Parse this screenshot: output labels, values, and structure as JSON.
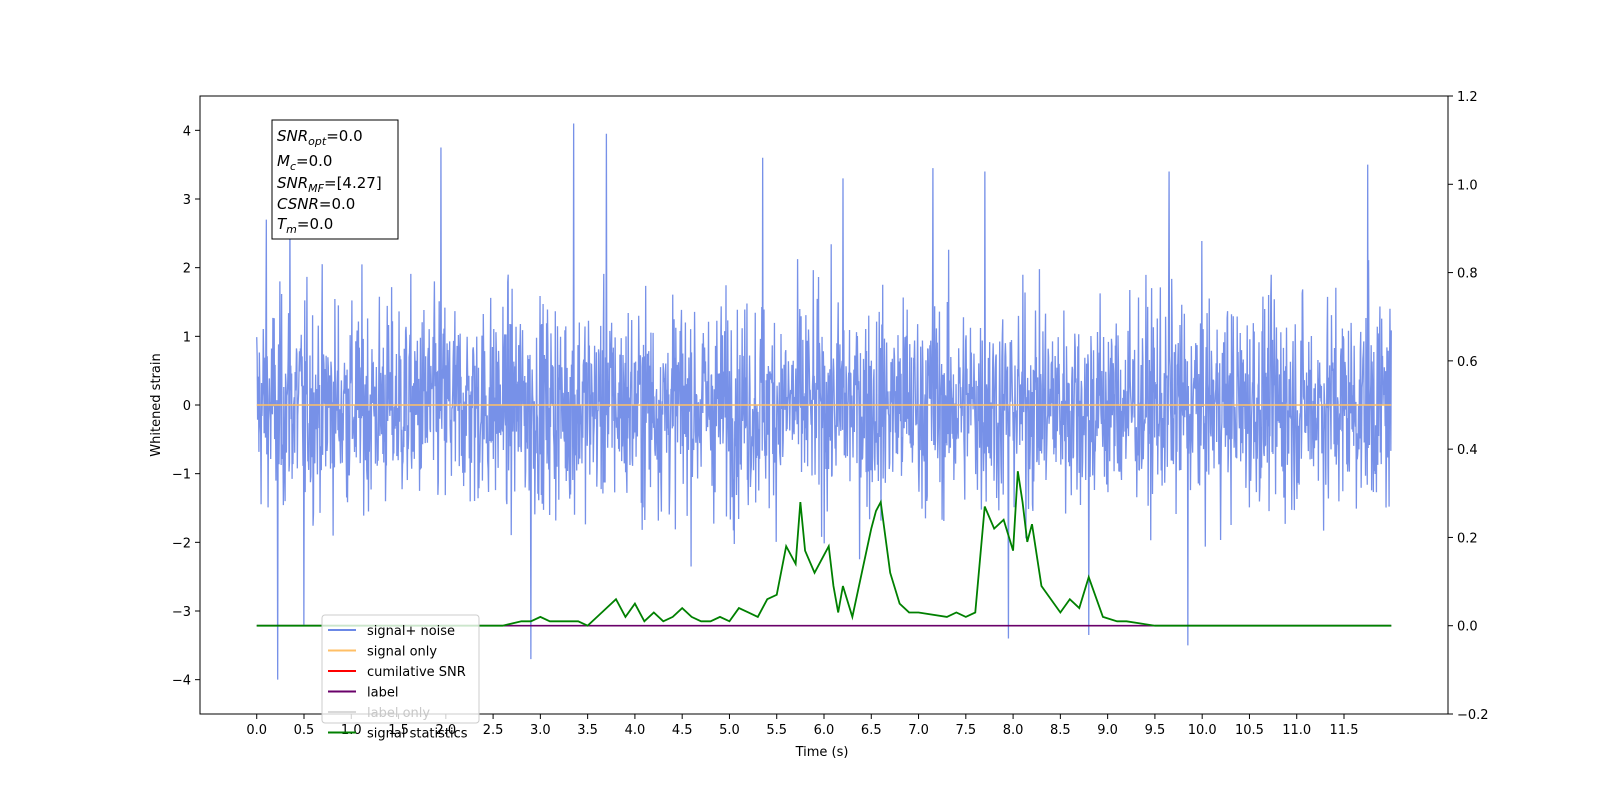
{
  "chart_data": {
    "type": "line",
    "xlabel": "Time (s)",
    "ylabel": "Whitened strain",
    "xlim": [
      -0.6,
      12.6
    ],
    "ylim": [
      -4.5,
      4.5
    ],
    "ylim_right": [
      -0.2,
      1.2
    ],
    "x_ticks": [
      "0.0",
      "0.5",
      "1.0",
      "1.5",
      "2.0",
      "2.5",
      "3.0",
      "3.5",
      "4.0",
      "4.5",
      "5.0",
      "5.5",
      "6.0",
      "6.5",
      "7.0",
      "7.5",
      "8.0",
      "8.5",
      "9.0",
      "9.5",
      "10.0",
      "10.5",
      "11.0",
      "11.5"
    ],
    "y_ticks_left": [
      4,
      3,
      2,
      1,
      0,
      -1,
      -2,
      -3,
      -4
    ],
    "y_ticks_left_labels": [
      "4",
      "3",
      "2",
      "1",
      "0",
      "−1",
      "−2",
      "−3",
      "−4"
    ],
    "y_ticks_right": [
      1.2,
      1.0,
      0.8,
      0.6,
      0.4,
      0.2,
      0.0,
      -0.2
    ],
    "y_ticks_right_labels": [
      "1.2",
      "1.0",
      "0.8",
      "0.6",
      "0.4",
      "0.2",
      "0.0",
      "−0.2"
    ],
    "grid": false,
    "legend_position": "lower-left",
    "annotation": {
      "line1_base": "SNR",
      "line1_sub": "opt",
      "line1_value": "=0.0",
      "line2_base": "M",
      "line2_sub": "c",
      "line2_value": "=0.0",
      "line3_base": "SNR",
      "line3_sub": "MF",
      "line3_value": "=[4.27]",
      "line4_base": "CSNR",
      "line4_value": "=0.0",
      "line5_base": "T",
      "line5_sub": "m",
      "line5_value": "=0.0"
    },
    "series": [
      {
        "name": "signal+ noise",
        "color": "#6b88e6",
        "axis": "left",
        "description_points": "noise band roughly between -2.5 and 2.5 with spikes up to about 4.1 and down to about -4.0",
        "spikes": [
          [
            0.1,
            2.7
          ],
          [
            0.22,
            -4.0
          ],
          [
            0.35,
            2.9
          ],
          [
            0.5,
            -3.2
          ],
          [
            1.95,
            3.75
          ],
          [
            2.9,
            -3.7
          ],
          [
            3.35,
            4.1
          ],
          [
            3.7,
            3.95
          ],
          [
            5.35,
            3.6
          ],
          [
            6.2,
            3.3
          ],
          [
            7.15,
            3.45
          ],
          [
            7.7,
            3.4
          ],
          [
            7.95,
            -3.4
          ],
          [
            8.8,
            -3.35
          ],
          [
            9.65,
            3.4
          ],
          [
            9.85,
            -3.5
          ],
          [
            11.75,
            3.5
          ]
        ]
      },
      {
        "name": "signal only",
        "color": "#ffbf66",
        "axis": "left",
        "x": [
          0.0,
          12.0
        ],
        "y": [
          0.0,
          0.0
        ]
      },
      {
        "name": "cumilative SNR",
        "color": "#ff0000",
        "axis": "right",
        "x": [],
        "y": []
      },
      {
        "name": "label",
        "color": "#6a006a",
        "axis": "right",
        "x": [
          0.0,
          12.0
        ],
        "y": [
          0.0,
          0.0
        ]
      },
      {
        "name": "label only",
        "color": "#d9d9d9",
        "axis": "right",
        "x": [],
        "y": []
      },
      {
        "name": "signal statistics",
        "color": "#008000",
        "axis": "right",
        "x": [
          0.0,
          2.6,
          2.8,
          2.9,
          3.0,
          3.1,
          3.4,
          3.5,
          3.6,
          3.8,
          3.9,
          4.0,
          4.1,
          4.2,
          4.3,
          4.4,
          4.5,
          4.6,
          4.7,
          4.8,
          4.9,
          5.0,
          5.1,
          5.2,
          5.3,
          5.4,
          5.5,
          5.6,
          5.7,
          5.75,
          5.8,
          5.9,
          6.0,
          6.05,
          6.1,
          6.15,
          6.2,
          6.3,
          6.4,
          6.5,
          6.55,
          6.6,
          6.7,
          6.8,
          6.9,
          7.0,
          7.3,
          7.4,
          7.5,
          7.6,
          7.7,
          7.8,
          7.9,
          8.0,
          8.05,
          8.1,
          8.15,
          8.2,
          8.3,
          8.5,
          8.6,
          8.7,
          8.8,
          8.95,
          9.1,
          9.2,
          9.5,
          12.0
        ],
        "y": [
          0.0,
          0.0,
          0.01,
          0.01,
          0.02,
          0.01,
          0.01,
          0.0,
          0.02,
          0.06,
          0.02,
          0.05,
          0.01,
          0.03,
          0.01,
          0.02,
          0.04,
          0.02,
          0.01,
          0.01,
          0.02,
          0.01,
          0.04,
          0.03,
          0.02,
          0.06,
          0.07,
          0.18,
          0.14,
          0.28,
          0.17,
          0.12,
          0.16,
          0.18,
          0.09,
          0.03,
          0.09,
          0.02,
          0.12,
          0.22,
          0.26,
          0.28,
          0.12,
          0.05,
          0.03,
          0.03,
          0.02,
          0.03,
          0.02,
          0.03,
          0.27,
          0.22,
          0.24,
          0.17,
          0.35,
          0.28,
          0.19,
          0.23,
          0.09,
          0.03,
          0.06,
          0.04,
          0.11,
          0.02,
          0.01,
          0.01,
          0.0,
          0.0
        ]
      }
    ]
  }
}
